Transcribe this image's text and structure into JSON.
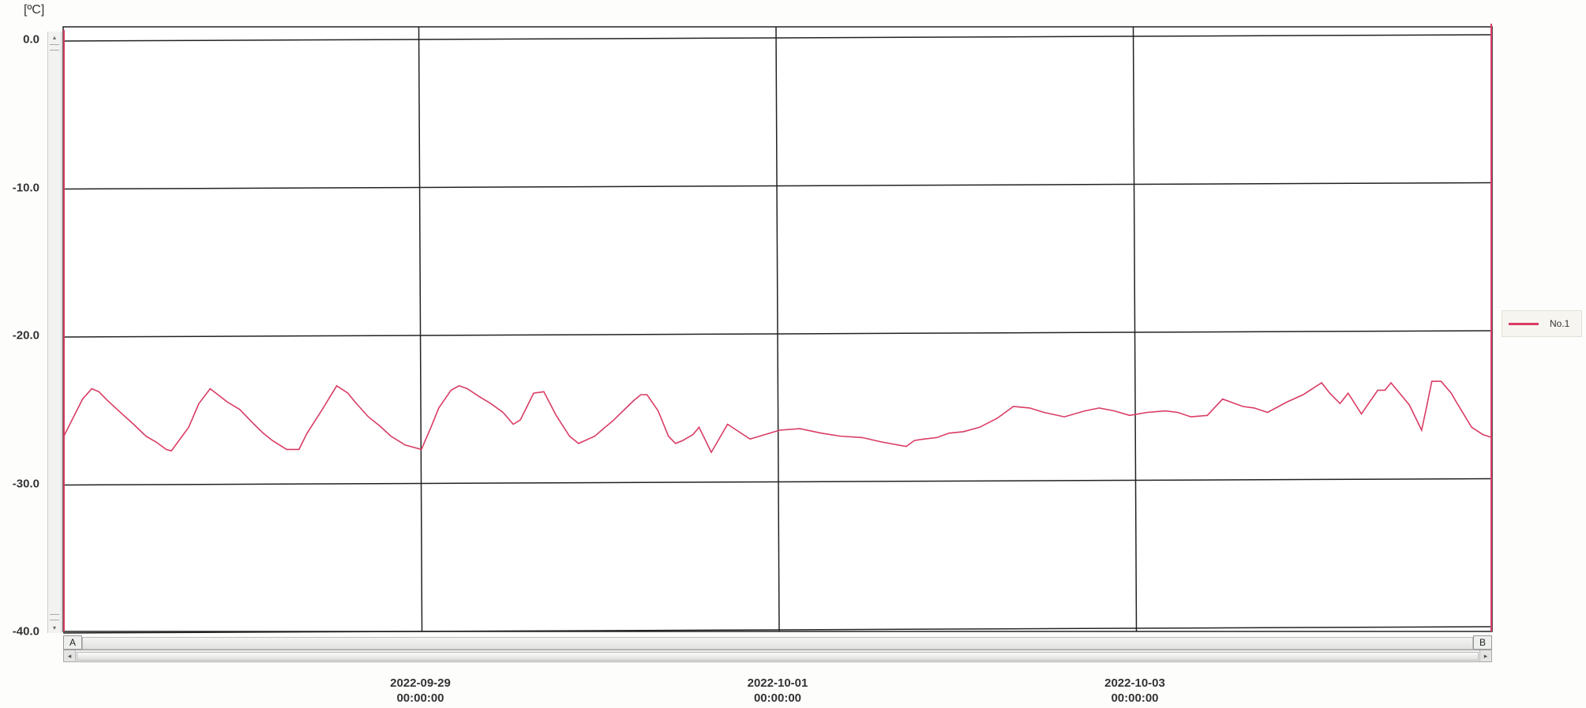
{
  "unit_label": "[ºC]",
  "colors": {
    "series": "#d93c64",
    "grid": "#222222",
    "left_axis": "#d93c64"
  },
  "scrollbar": {
    "marker_a": "A",
    "marker_b": "B",
    "left_arrow": "◂",
    "right_arrow": "▸",
    "up_arrow": "▴",
    "down_arrow": "▾"
  },
  "chart_data": {
    "type": "line",
    "title": "",
    "xlabel": "",
    "ylabel": "[ºC]",
    "ylim": [
      -40.0,
      0.0
    ],
    "yticks": [
      "0.0",
      "-10.0",
      "-20.0",
      "-30.0",
      "-40.0"
    ],
    "xlim_days": [
      0,
      14
    ],
    "x_ticks": [
      {
        "date": "2022-09-29",
        "time": "00:00:00"
      },
      {
        "date": "2022-10-01",
        "time": "00:00:00"
      },
      {
        "date": "2022-10-03",
        "time": "00:00:00"
      }
    ],
    "legend": {
      "position": "right",
      "entries": [
        "No.1"
      ]
    },
    "grid": true,
    "series": [
      {
        "name": "No.1",
        "x": [
          0,
          0.19,
          0.28,
          0.35,
          0.42,
          0.53,
          0.69,
          0.81,
          0.91,
          1.01,
          1.06,
          1.23,
          1.33,
          1.44,
          1.61,
          1.73,
          1.87,
          1.96,
          2.05,
          2.19,
          2.31,
          2.39,
          2.53,
          2.68,
          2.79,
          2.86,
          2.99,
          3.1,
          3.21,
          3.35,
          3.51,
          3.61,
          3.68,
          3.8,
          3.88,
          3.96,
          4.07,
          4.19,
          4.31,
          4.41,
          4.48,
          4.61,
          4.71,
          4.83,
          4.96,
          5.05,
          5.21,
          5.31,
          5.38,
          5.53,
          5.59,
          5.66,
          5.72,
          5.83,
          5.93,
          6,
          6.07,
          6.12,
          6.17,
          6.23,
          6.35,
          6.51,
          6.73,
          7.02,
          7.22,
          7.43,
          7.61,
          7.83,
          8.02,
          8.26,
          8.34,
          8.43,
          8.56,
          8.68,
          8.82,
          8.98,
          9.15,
          9.31,
          9.47,
          9.61,
          9.81,
          10.01,
          10.15,
          10.3,
          10.45,
          10.62,
          10.8,
          10.92,
          11.05,
          11.21,
          11.36,
          11.56,
          11.67,
          11.8,
          11.99,
          12.15,
          12.33,
          12.41,
          12.51,
          12.59,
          12.72,
          12.88,
          12.95,
          13.01,
          13.19,
          13.31,
          13.35,
          13.41,
          13.5,
          13.6,
          13.65,
          13.8,
          13.91,
          14
        ],
        "y": [
          -26.9,
          -24.3,
          -23.6,
          -23.8,
          -24.3,
          -25,
          -26,
          -26.8,
          -27.2,
          -27.7,
          -27.8,
          -26.2,
          -24.6,
          -23.6,
          -24.5,
          -25,
          -26,
          -26.6,
          -27.1,
          -27.7,
          -27.7,
          -26.6,
          -25.1,
          -23.4,
          -23.9,
          -24.5,
          -25.5,
          -26.1,
          -26.8,
          -27.4,
          -27.7,
          -26.1,
          -24.9,
          -23.7,
          -23.4,
          -23.6,
          -24.1,
          -24.6,
          -25.2,
          -26,
          -25.7,
          -23.9,
          -23.8,
          -25.4,
          -26.8,
          -27.3,
          -26.8,
          -26.2,
          -25.8,
          -24.8,
          -24.4,
          -24,
          -24,
          -25.1,
          -26.8,
          -27.3,
          -27.1,
          -26.9,
          -26.7,
          -26.2,
          -27.9,
          -26,
          -27,
          -26.4,
          -26.3,
          -26.6,
          -26.8,
          -26.9,
          -27.2,
          -27.5,
          -27.1,
          -27,
          -26.9,
          -26.6,
          -26.5,
          -26.2,
          -25.6,
          -24.8,
          -24.9,
          -25.2,
          -25.5,
          -25.1,
          -24.9,
          -25.1,
          -25.4,
          -25.2,
          -25.1,
          -25.2,
          -25.5,
          -25.4,
          -24.3,
          -24.8,
          -24.9,
          -25.2,
          -24.5,
          -24,
          -23.2,
          -23.9,
          -24.6,
          -23.9,
          -25.3,
          -23.7,
          -23.7,
          -23.2,
          -24.7,
          -26.4,
          -25.1,
          -23.1,
          -23.1,
          -23.9,
          -24.5,
          -26.2,
          -26.7,
          -26.9
        ]
      }
    ]
  }
}
